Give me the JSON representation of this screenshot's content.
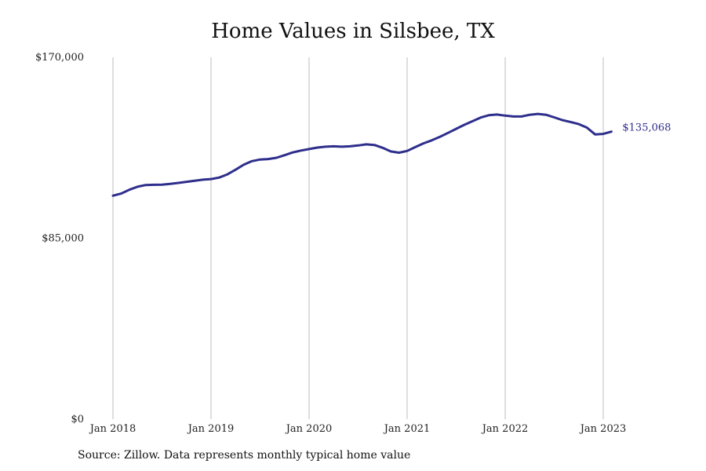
{
  "chart_data": {
    "type": "line",
    "title": "Home Values in Silsbee, TX",
    "xlabel": "",
    "ylabel": "",
    "ylim": [
      0,
      170000
    ],
    "y_ticks": [
      {
        "value": 0,
        "label": "$0"
      },
      {
        "value": 85000,
        "label": "$85,000"
      },
      {
        "value": 170000,
        "label": "$170,000"
      }
    ],
    "x_ticks": [
      {
        "value": 2018.0,
        "label": "Jan 2018"
      },
      {
        "value": 2019.0,
        "label": "Jan 2019"
      },
      {
        "value": 2020.0,
        "label": "Jan 2020"
      },
      {
        "value": 2021.0,
        "label": "Jan 2021"
      },
      {
        "value": 2022.0,
        "label": "Jan 2022"
      },
      {
        "value": 2023.0,
        "label": "Jan 2023"
      }
    ],
    "xlim": [
      2018.0,
      2023.083
    ],
    "grid": {
      "vertical": true,
      "horizontal": false
    },
    "line_color": "#2e2e8c",
    "grid_color": "#bdbdbd",
    "end_label": "$135,068",
    "series": [
      {
        "x": [
          2018.0,
          2018.083,
          2018.167,
          2018.25,
          2018.333,
          2018.417,
          2018.5,
          2018.583,
          2018.667,
          2018.75,
          2018.833,
          2018.917,
          2019.0,
          2019.083,
          2019.167,
          2019.25,
          2019.333,
          2019.417,
          2019.5,
          2019.583,
          2019.667,
          2019.75,
          2019.833,
          2019.917,
          2020.0,
          2020.083,
          2020.167,
          2020.25,
          2020.333,
          2020.417,
          2020.5,
          2020.583,
          2020.667,
          2020.75,
          2020.833,
          2020.917,
          2021.0,
          2021.083,
          2021.167,
          2021.25,
          2021.333,
          2021.417,
          2021.5,
          2021.583,
          2021.667,
          2021.75,
          2021.833,
          2021.917,
          2022.0,
          2022.083,
          2022.167,
          2022.25,
          2022.333,
          2022.417,
          2022.5,
          2022.583,
          2022.667,
          2022.75,
          2022.833,
          2022.917,
          2023.0,
          2023.083
        ],
        "y": [
          105000,
          106000,
          107800,
          109200,
          110000,
          110100,
          110200,
          110500,
          111000,
          111500,
          112000,
          112500,
          112800,
          113500,
          115000,
          117200,
          119500,
          121200,
          122000,
          122200,
          122800,
          124000,
          125300,
          126200,
          126900,
          127600,
          128000,
          128200,
          128000,
          128200,
          128600,
          129100,
          128800,
          127500,
          125800,
          125200,
          126000,
          127800,
          129600,
          131000,
          132600,
          134500,
          136400,
          138300,
          140000,
          141700,
          142800,
          143100,
          142600,
          142200,
          142200,
          143000,
          143400,
          143000,
          141800,
          140500,
          139600,
          138600,
          137000,
          133800,
          134000,
          135068
        ]
      }
    ]
  },
  "footer": {
    "source": "Source: Zillow. Data represents monthly typical home value"
  }
}
